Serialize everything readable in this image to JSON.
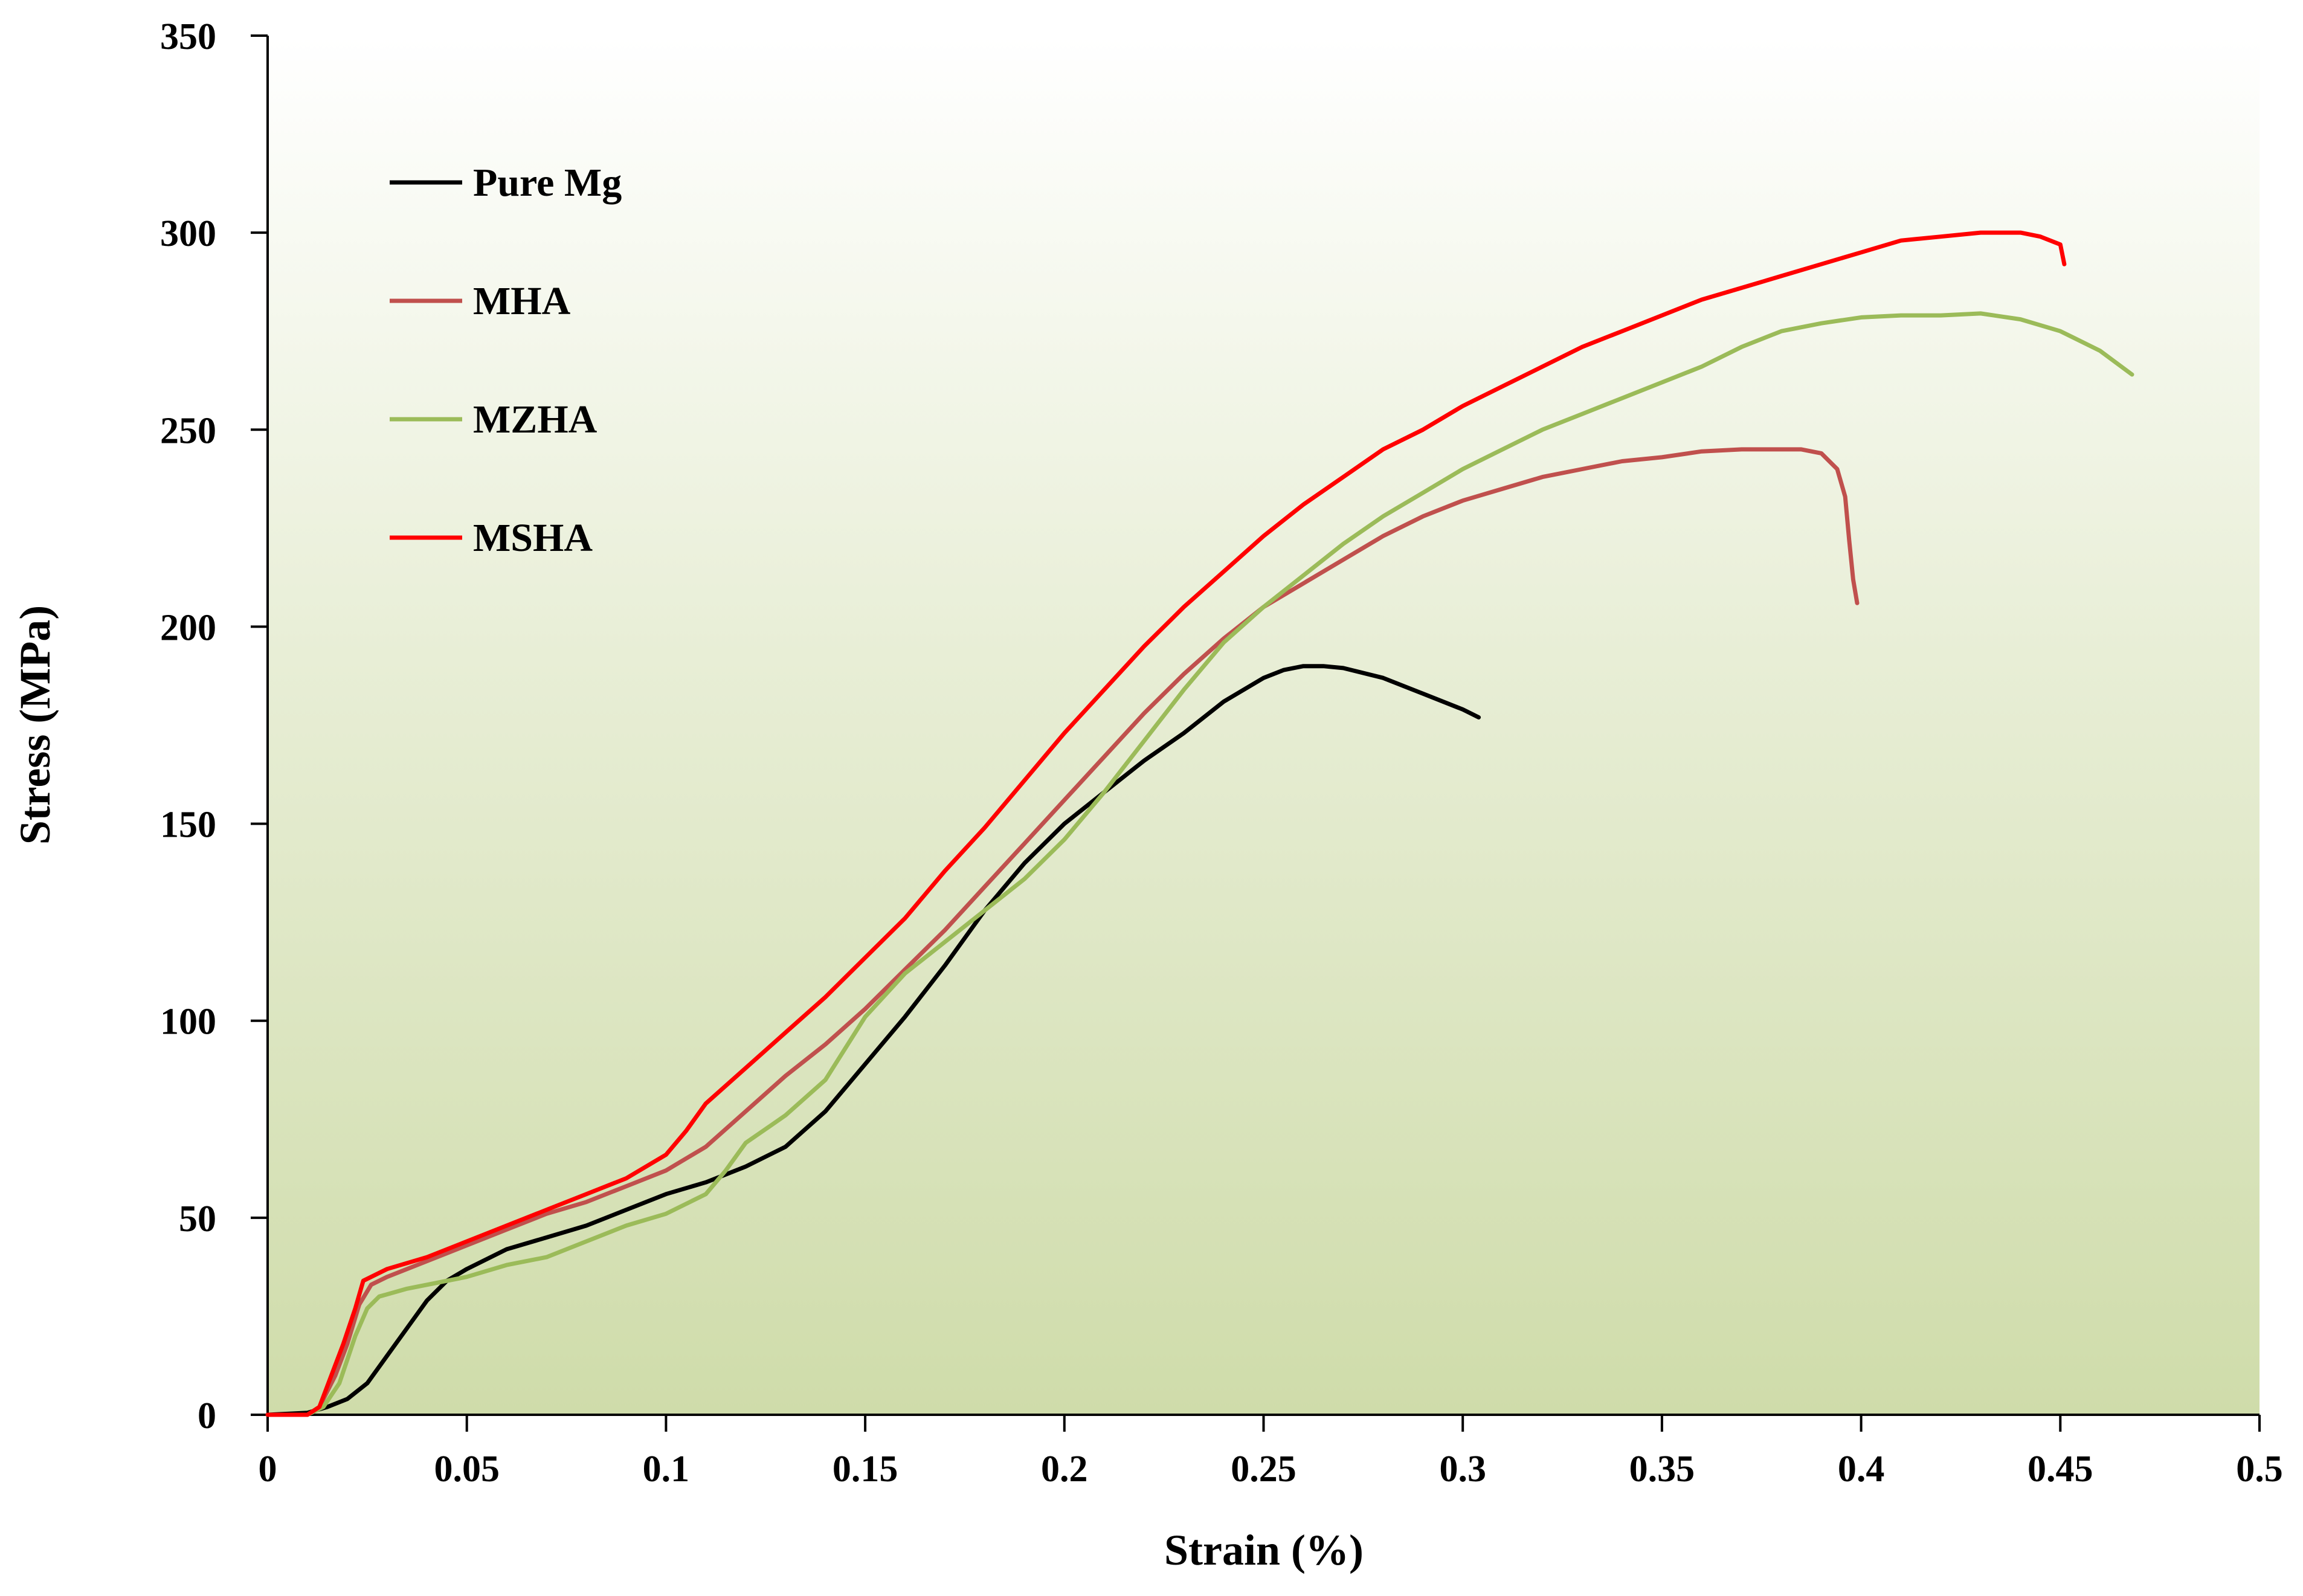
{
  "chart_data": {
    "type": "line",
    "title": "",
    "xlabel": "Strain (%)",
    "ylabel": "Stress (MPa)",
    "xlim": [
      0,
      0.5
    ],
    "ylim": [
      0,
      350
    ],
    "grid": false,
    "legend_position": "top-left",
    "x_ticks": [
      "0",
      "0.05",
      "0.1",
      "0.15",
      "0.2",
      "0.25",
      "0.3",
      "0.35",
      "0.4",
      "0.45",
      "0.5"
    ],
    "y_ticks": [
      "0",
      "50",
      "100",
      "150",
      "200",
      "250",
      "300",
      "350"
    ],
    "series": [
      {
        "name": "Pure Mg",
        "color": "#000000",
        "points": [
          [
            0,
            0
          ],
          [
            0.01,
            0.5
          ],
          [
            0.015,
            2
          ],
          [
            0.02,
            4
          ],
          [
            0.025,
            8
          ],
          [
            0.03,
            15
          ],
          [
            0.035,
            22
          ],
          [
            0.04,
            29
          ],
          [
            0.045,
            34
          ],
          [
            0.05,
            37
          ],
          [
            0.06,
            42
          ],
          [
            0.07,
            45
          ],
          [
            0.08,
            48
          ],
          [
            0.09,
            52
          ],
          [
            0.1,
            56
          ],
          [
            0.11,
            59
          ],
          [
            0.12,
            63
          ],
          [
            0.13,
            68
          ],
          [
            0.14,
            77
          ],
          [
            0.15,
            89
          ],
          [
            0.16,
            101
          ],
          [
            0.17,
            114
          ],
          [
            0.18,
            128
          ],
          [
            0.19,
            140
          ],
          [
            0.2,
            150
          ],
          [
            0.21,
            158
          ],
          [
            0.22,
            166
          ],
          [
            0.23,
            173
          ],
          [
            0.24,
            181
          ],
          [
            0.25,
            187
          ],
          [
            0.255,
            189
          ],
          [
            0.26,
            190
          ],
          [
            0.265,
            190
          ],
          [
            0.27,
            189.5
          ],
          [
            0.28,
            187
          ],
          [
            0.29,
            183
          ],
          [
            0.3,
            179
          ],
          [
            0.304,
            177
          ]
        ]
      },
      {
        "name": "MHA",
        "color": "#c0504d",
        "points": [
          [
            0,
            0
          ],
          [
            0.01,
            0
          ],
          [
            0.013,
            2
          ],
          [
            0.017,
            10
          ],
          [
            0.02,
            18
          ],
          [
            0.023,
            28
          ],
          [
            0.026,
            33
          ],
          [
            0.03,
            35
          ],
          [
            0.04,
            39
          ],
          [
            0.05,
            43
          ],
          [
            0.06,
            47
          ],
          [
            0.07,
            51
          ],
          [
            0.08,
            54
          ],
          [
            0.09,
            58
          ],
          [
            0.1,
            62
          ],
          [
            0.11,
            68
          ],
          [
            0.12,
            77
          ],
          [
            0.13,
            86
          ],
          [
            0.14,
            94
          ],
          [
            0.15,
            103
          ],
          [
            0.16,
            113
          ],
          [
            0.17,
            123
          ],
          [
            0.18,
            134
          ],
          [
            0.19,
            145
          ],
          [
            0.2,
            156
          ],
          [
            0.21,
            167
          ],
          [
            0.22,
            178
          ],
          [
            0.23,
            188
          ],
          [
            0.24,
            197
          ],
          [
            0.25,
            205
          ],
          [
            0.26,
            211
          ],
          [
            0.27,
            217
          ],
          [
            0.28,
            223
          ],
          [
            0.29,
            228
          ],
          [
            0.3,
            232
          ],
          [
            0.31,
            235
          ],
          [
            0.32,
            238
          ],
          [
            0.33,
            240
          ],
          [
            0.34,
            242
          ],
          [
            0.35,
            243
          ],
          [
            0.36,
            244.5
          ],
          [
            0.37,
            245
          ],
          [
            0.38,
            245
          ],
          [
            0.385,
            245
          ],
          [
            0.39,
            244
          ],
          [
            0.394,
            240
          ],
          [
            0.396,
            233
          ],
          [
            0.397,
            222
          ],
          [
            0.398,
            212
          ],
          [
            0.399,
            206
          ]
        ]
      },
      {
        "name": "MZHA",
        "color": "#9bbb59",
        "points": [
          [
            0,
            0
          ],
          [
            0.01,
            0
          ],
          [
            0.014,
            2
          ],
          [
            0.018,
            8
          ],
          [
            0.02,
            14
          ],
          [
            0.022,
            20
          ],
          [
            0.025,
            27
          ],
          [
            0.028,
            30
          ],
          [
            0.035,
            32
          ],
          [
            0.05,
            35
          ],
          [
            0.06,
            38
          ],
          [
            0.07,
            40
          ],
          [
            0.08,
            44
          ],
          [
            0.09,
            48
          ],
          [
            0.1,
            51
          ],
          [
            0.11,
            56
          ],
          [
            0.115,
            62
          ],
          [
            0.12,
            69
          ],
          [
            0.13,
            76
          ],
          [
            0.14,
            85
          ],
          [
            0.15,
            101
          ],
          [
            0.16,
            112
          ],
          [
            0.17,
            120
          ],
          [
            0.18,
            128
          ],
          [
            0.19,
            136
          ],
          [
            0.2,
            146
          ],
          [
            0.21,
            158
          ],
          [
            0.22,
            171
          ],
          [
            0.23,
            184
          ],
          [
            0.24,
            196
          ],
          [
            0.25,
            205
          ],
          [
            0.26,
            213
          ],
          [
            0.27,
            221
          ],
          [
            0.28,
            228
          ],
          [
            0.29,
            234
          ],
          [
            0.3,
            240
          ],
          [
            0.31,
            245
          ],
          [
            0.32,
            250
          ],
          [
            0.33,
            254
          ],
          [
            0.34,
            258
          ],
          [
            0.35,
            262
          ],
          [
            0.36,
            266
          ],
          [
            0.37,
            271
          ],
          [
            0.38,
            275
          ],
          [
            0.39,
            277
          ],
          [
            0.4,
            278.5
          ],
          [
            0.41,
            279
          ],
          [
            0.42,
            279
          ],
          [
            0.43,
            279.5
          ],
          [
            0.44,
            278
          ],
          [
            0.45,
            275
          ],
          [
            0.46,
            270
          ],
          [
            0.468,
            264
          ]
        ]
      },
      {
        "name": "MSHA",
        "color": "#ff0000",
        "points": [
          [
            0,
            0
          ],
          [
            0.01,
            0
          ],
          [
            0.013,
            2
          ],
          [
            0.016,
            10
          ],
          [
            0.019,
            18
          ],
          [
            0.022,
            27
          ],
          [
            0.024,
            34
          ],
          [
            0.03,
            37
          ],
          [
            0.04,
            40
          ],
          [
            0.05,
            44
          ],
          [
            0.06,
            48
          ],
          [
            0.07,
            52
          ],
          [
            0.08,
            56
          ],
          [
            0.09,
            60
          ],
          [
            0.1,
            66
          ],
          [
            0.105,
            72
          ],
          [
            0.11,
            79
          ],
          [
            0.12,
            88
          ],
          [
            0.13,
            97
          ],
          [
            0.14,
            106
          ],
          [
            0.15,
            116
          ],
          [
            0.16,
            126
          ],
          [
            0.17,
            138
          ],
          [
            0.18,
            149
          ],
          [
            0.19,
            161
          ],
          [
            0.2,
            173
          ],
          [
            0.21,
            184
          ],
          [
            0.22,
            195
          ],
          [
            0.23,
            205
          ],
          [
            0.24,
            214
          ],
          [
            0.25,
            223
          ],
          [
            0.26,
            231
          ],
          [
            0.27,
            238
          ],
          [
            0.28,
            245
          ],
          [
            0.29,
            250
          ],
          [
            0.3,
            256
          ],
          [
            0.31,
            261
          ],
          [
            0.32,
            266
          ],
          [
            0.33,
            271
          ],
          [
            0.34,
            275
          ],
          [
            0.35,
            279
          ],
          [
            0.36,
            283
          ],
          [
            0.37,
            286
          ],
          [
            0.38,
            289
          ],
          [
            0.39,
            292
          ],
          [
            0.4,
            295
          ],
          [
            0.41,
            298
          ],
          [
            0.42,
            299
          ],
          [
            0.43,
            300
          ],
          [
            0.44,
            300
          ],
          [
            0.445,
            299
          ],
          [
            0.45,
            297
          ],
          [
            0.451,
            292
          ]
        ]
      }
    ]
  }
}
